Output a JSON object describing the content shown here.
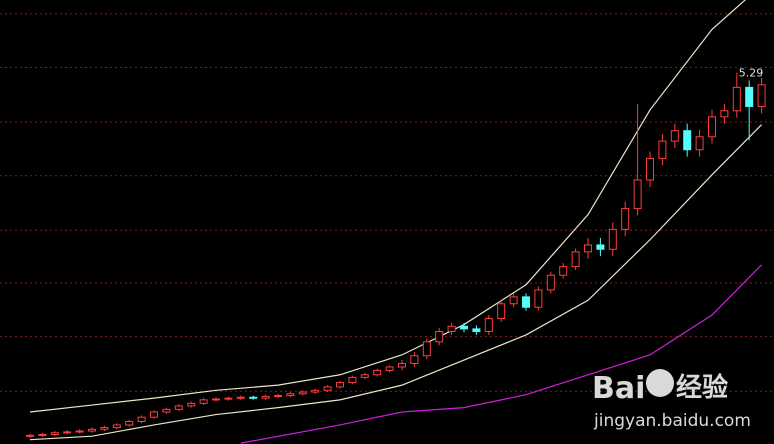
{
  "chart_data": {
    "type": "candlestick",
    "ylim": [
      1,
      6.13
    ],
    "grid": true,
    "ygrid": [
      5.97,
      5.35,
      4.72,
      4.1,
      3.47,
      2.86,
      2.24,
      1.61
    ],
    "up_color": "#ff3c3c",
    "down_color": "#54fcfc",
    "background": "#000000",
    "open": [
      1.09,
      1.1,
      1.11,
      1.13,
      1.14,
      1.15,
      1.17,
      1.19,
      1.22,
      1.26,
      1.31,
      1.37,
      1.4,
      1.44,
      1.47,
      1.51,
      1.52,
      1.53,
      1.54,
      1.53,
      1.55,
      1.56,
      1.58,
      1.6,
      1.62,
      1.66,
      1.71,
      1.77,
      1.8,
      1.85,
      1.89,
      1.93,
      2.02,
      2.18,
      2.3,
      2.36,
      2.33,
      2.3,
      2.45,
      2.62,
      2.7,
      2.58,
      2.78,
      2.95,
      3.05,
      3.22,
      3.3,
      3.25,
      3.48,
      3.72,
      4.05,
      4.3,
      4.5,
      4.62,
      4.4,
      4.55,
      4.78,
      4.85,
      5.12,
      4.9
    ],
    "high": [
      1.12,
      1.13,
      1.15,
      1.16,
      1.17,
      1.19,
      1.21,
      1.24,
      1.28,
      1.33,
      1.39,
      1.42,
      1.46,
      1.49,
      1.53,
      1.54,
      1.55,
      1.56,
      1.56,
      1.57,
      1.58,
      1.6,
      1.62,
      1.64,
      1.68,
      1.73,
      1.79,
      1.82,
      1.87,
      1.91,
      1.97,
      2.06,
      2.22,
      2.34,
      2.4,
      2.4,
      2.37,
      2.49,
      2.66,
      2.74,
      2.74,
      2.82,
      2.99,
      3.09,
      3.26,
      3.38,
      3.38,
      3.56,
      3.8,
      4.93,
      4.38,
      4.58,
      4.7,
      4.7,
      4.63,
      4.86,
      4.93,
      5.29,
      5.2,
      5.23
    ],
    "low": [
      1.07,
      1.08,
      1.09,
      1.11,
      1.12,
      1.13,
      1.15,
      1.17,
      1.2,
      1.24,
      1.29,
      1.35,
      1.38,
      1.42,
      1.45,
      1.49,
      1.5,
      1.51,
      1.51,
      1.51,
      1.53,
      1.54,
      1.56,
      1.58,
      1.6,
      1.64,
      1.69,
      1.75,
      1.78,
      1.83,
      1.85,
      1.89,
      1.98,
      2.14,
      2.26,
      2.29,
      2.26,
      2.26,
      2.41,
      2.58,
      2.54,
      2.54,
      2.74,
      2.91,
      3.01,
      3.14,
      3.17,
      3.17,
      3.4,
      3.64,
      3.97,
      4.22,
      4.42,
      4.32,
      4.32,
      4.47,
      4.7,
      4.77,
      4.51,
      4.82
    ],
    "close": [
      1.1,
      1.11,
      1.13,
      1.14,
      1.15,
      1.17,
      1.19,
      1.22,
      1.26,
      1.31,
      1.37,
      1.4,
      1.44,
      1.47,
      1.51,
      1.52,
      1.53,
      1.54,
      1.53,
      1.55,
      1.56,
      1.58,
      1.6,
      1.62,
      1.66,
      1.71,
      1.77,
      1.8,
      1.85,
      1.89,
      1.93,
      2.02,
      2.18,
      2.3,
      2.36,
      2.33,
      2.3,
      2.45,
      2.62,
      2.7,
      2.58,
      2.78,
      2.95,
      3.05,
      3.22,
      3.3,
      3.25,
      3.48,
      3.72,
      4.05,
      4.3,
      4.5,
      4.62,
      4.4,
      4.55,
      4.78,
      4.85,
      5.12,
      4.9,
      5.15
    ],
    "lines": [
      {
        "color": "#e8e8c8",
        "x": [
          0,
          5,
          10,
          15,
          20,
          25,
          30,
          35,
          40,
          45,
          50,
          55,
          59
        ],
        "values": [
          1.37,
          1.45,
          1.53,
          1.62,
          1.68,
          1.8,
          2.03,
          2.38,
          2.84,
          3.65,
          4.86,
          5.79,
          6.3
        ]
      },
      {
        "color": "#e8e8c8",
        "x": [
          0,
          5,
          10,
          15,
          20,
          25,
          30,
          35,
          40,
          45,
          50,
          55,
          59
        ],
        "values": [
          1.05,
          1.09,
          1.22,
          1.34,
          1.42,
          1.51,
          1.68,
          1.97,
          2.26,
          2.66,
          3.36,
          4.11,
          4.69
        ]
      },
      {
        "color": "#d020d8",
        "x": [
          17,
          25,
          30,
          35,
          40,
          45,
          50,
          55,
          59
        ],
        "values": [
          1.01,
          1.22,
          1.37,
          1.42,
          1.57,
          1.8,
          2.03,
          2.49,
          3.07
        ]
      }
    ],
    "max_label": "5.29"
  },
  "watermark": {
    "brand": "Bai",
    "product": "经验",
    "url": "jingyan.baidu.com"
  }
}
